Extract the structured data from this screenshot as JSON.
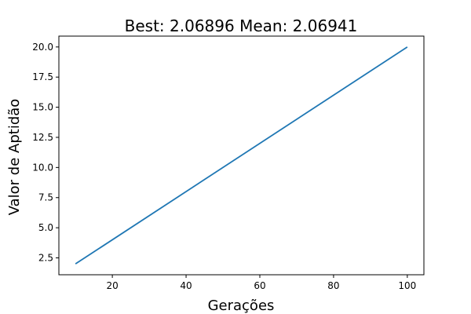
{
  "chart_data": {
    "type": "line",
    "title": "Best: 2.06896 Mean: 2.06941",
    "xlabel": "Gerações",
    "ylabel": "Valor de Aptidão",
    "xlim": [
      5.5,
      104.5
    ],
    "ylim": [
      1.1,
      20.9
    ],
    "xticks": [
      20,
      40,
      60,
      80,
      100
    ],
    "xtick_labels": [
      "20",
      "40",
      "60",
      "80",
      "100"
    ],
    "yticks": [
      2.5,
      5.0,
      7.5,
      10.0,
      12.5,
      15.0,
      17.5,
      20.0
    ],
    "ytick_labels": [
      "2.5",
      "5.0",
      "7.5",
      "10.0",
      "12.5",
      "15.0",
      "17.5",
      "20.0"
    ],
    "grid": false,
    "series": [
      {
        "color": "#1f77b4",
        "x": [
          10,
          100
        ],
        "y": [
          2.0,
          20.0
        ]
      }
    ]
  }
}
